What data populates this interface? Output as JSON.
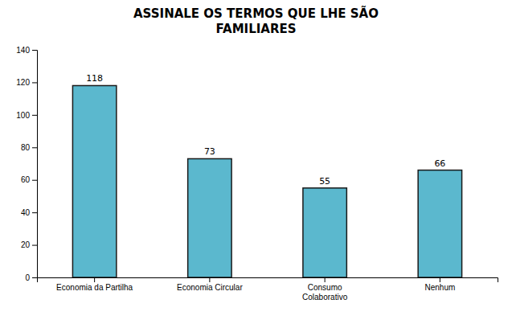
{
  "chart_data": {
    "type": "bar",
    "title": "ASSINALE OS TERMOS QUE LHE SÃO\nFAMILIARES",
    "categories": [
      "Economia da Partilha",
      "Economia Circular",
      "Consumo\nColaborativo",
      "Nenhum"
    ],
    "values": [
      118,
      73,
      55,
      66
    ],
    "color": "#5BB8CE",
    "ylim": [
      0,
      140
    ],
    "yticks": [
      0,
      20,
      40,
      60,
      80,
      100,
      120,
      140
    ],
    "grid": false,
    "data_labels": true
  }
}
